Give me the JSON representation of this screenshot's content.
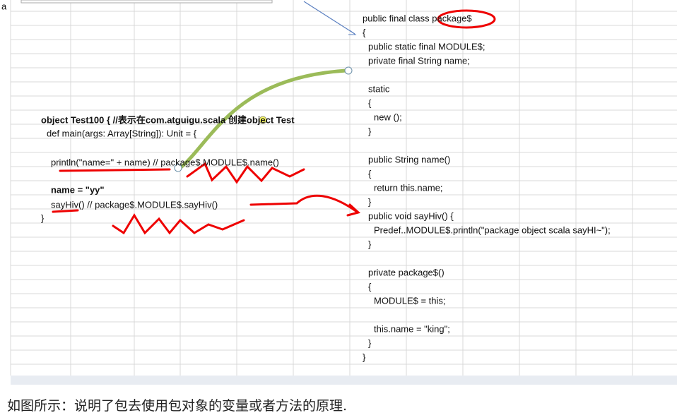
{
  "corner_text": "a",
  "left_code": {
    "lines": [
      "object Test100 { //表示在com.atguigu.scala 创建object Test",
      "def main(args: Array[String]): Unit = {",
      "println(\"name=\" + name) // package$.MODULE$.name()",
      "name = \"yy\"",
      "sayHiv() // package$.MODULE$.sayHiv()",
      "}"
    ]
  },
  "right_code": {
    "lines": [
      "public final class package$",
      "{",
      "public static final  MODULE$;",
      "private final String name;",
      "static",
      "{",
      "new ();",
      "}",
      "public String name()",
      "{",
      "return this.name;",
      "}",
      "public void sayHiv() {",
      "Predef..MODULE$.println(\"package object scala sayHI~\");",
      "}",
      "private package$()",
      "{",
      "MODULE$ = this;",
      "this.name = \"king\";",
      "}",
      "}"
    ]
  },
  "caption": "如图所示：说明了包去使用包对象的变量或者方法的原理."
}
